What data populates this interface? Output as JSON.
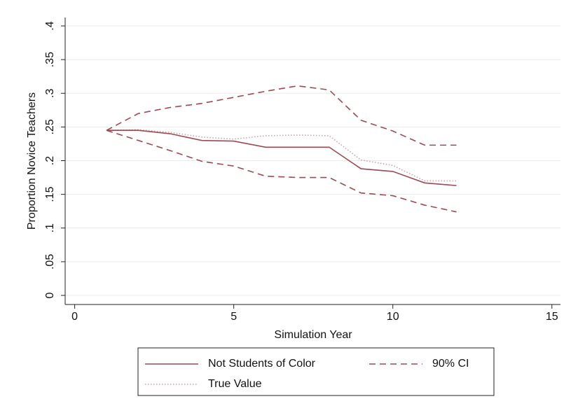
{
  "chart_data": {
    "type": "line",
    "x_label": "Simulation Year",
    "y_label": "Proportion Novice Teachers",
    "x": [
      1,
      2,
      3,
      4,
      5,
      6,
      7,
      8,
      9,
      10,
      11,
      12
    ],
    "series": [
      {
        "name": "Not Students of Color",
        "color": "#9b4a52",
        "style": "solid",
        "values": [
          0.245,
          0.245,
          0.24,
          0.23,
          0.229,
          0.22,
          0.22,
          0.22,
          0.188,
          0.184,
          0.167,
          0.163
        ]
      },
      {
        "name": "True Value",
        "color": "#c9a3a7",
        "style": "dotted",
        "values": [
          0.245,
          0.246,
          0.242,
          0.235,
          0.232,
          0.237,
          0.238,
          0.237,
          0.201,
          0.193,
          0.17,
          0.17
        ]
      }
    ],
    "ci": {
      "name": "90% CI",
      "color": "#9b4a52",
      "style": "dashed",
      "upper": [
        0.245,
        0.27,
        0.279,
        0.285,
        0.294,
        0.303,
        0.311,
        0.305,
        0.26,
        0.244,
        0.223,
        0.223
      ],
      "lower": [
        0.245,
        0.23,
        0.215,
        0.199,
        0.192,
        0.177,
        0.175,
        0.175,
        0.152,
        0.148,
        0.134,
        0.124
      ]
    },
    "xlim": [
      -0.3,
      15.27
    ],
    "ylim": [
      -0.0135,
      0.4125
    ],
    "xticks": [
      0,
      5,
      10,
      15
    ],
    "yticks": [
      0,
      {
        "value": 0.05,
        "label": ".05"
      },
      {
        "value": 0.1,
        "label": ".1"
      },
      {
        "value": 0.15,
        "label": ".15"
      },
      {
        "value": 0.2,
        "label": ".2"
      },
      {
        "value": 0.25,
        "label": ".25"
      },
      {
        "value": 0.3,
        "label": ".3"
      },
      {
        "value": 0.35,
        "label": ".35"
      },
      {
        "value": 0.4,
        "label": ".4"
      }
    ],
    "grid": true
  }
}
